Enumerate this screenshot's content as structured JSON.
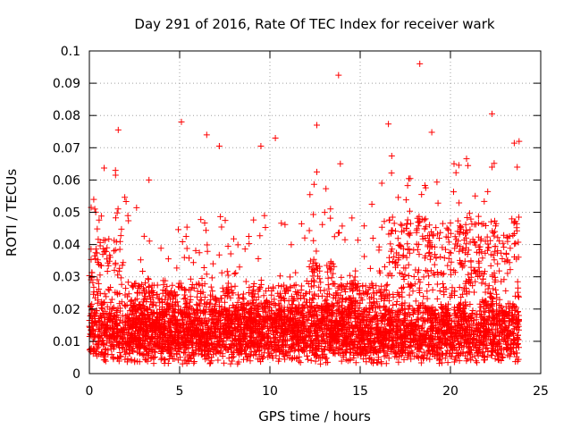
{
  "chart_data": {
    "type": "scatter",
    "title": "Day 291 of 2016, Rate Of TEC Index for receiver wark",
    "xlabel": "GPS time / hours",
    "ylabel": "ROTI / TECUs",
    "xlim": [
      0,
      25
    ],
    "ylim": [
      0,
      0.1
    ],
    "grid": true,
    "marker": "+",
    "color": "#ff0000",
    "x_ticks": [
      "0",
      "5",
      "10",
      "15",
      "20",
      "25"
    ],
    "x_tick_values": [
      0,
      5,
      10,
      15,
      20,
      25
    ],
    "y_ticks": [
      "0",
      "0.01",
      "0.02",
      "0.03",
      "0.04",
      "0.05",
      "0.06",
      "0.07",
      "0.08",
      "0.09",
      "0.1"
    ],
    "y_tick_values": [
      0,
      0.01,
      0.02,
      0.03,
      0.04,
      0.05,
      0.06,
      0.07,
      0.08,
      0.09,
      0.1
    ],
    "x_data_range": [
      0,
      23.8
    ],
    "typical_range": [
      0.005,
      0.02
    ],
    "notable_points": [
      {
        "x": 18.3,
        "y": 0.096
      },
      {
        "x": 13.8,
        "y": 0.0925
      },
      {
        "x": 22.3,
        "y": 0.0805
      },
      {
        "x": 5.1,
        "y": 0.078
      },
      {
        "x": 12.6,
        "y": 0.077
      },
      {
        "x": 1.6,
        "y": 0.0755
      },
      {
        "x": 6.5,
        "y": 0.074
      },
      {
        "x": 10.3,
        "y": 0.073
      },
      {
        "x": 23.8,
        "y": 0.072
      },
      {
        "x": 7.2,
        "y": 0.0705
      },
      {
        "x": 9.5,
        "y": 0.0705
      },
      {
        "x": 13.9,
        "y": 0.065
      },
      {
        "x": 20.2,
        "y": 0.065
      },
      {
        "x": 22.3,
        "y": 0.064
      },
      {
        "x": 23.7,
        "y": 0.064
      },
      {
        "x": 12.6,
        "y": 0.0625
      },
      {
        "x": 1.45,
        "y": 0.0615
      },
      {
        "x": 3.3,
        "y": 0.06
      },
      {
        "x": 16.2,
        "y": 0.059
      },
      {
        "x": 0.1,
        "y": 0.0515
      },
      {
        "x": 0.3,
        "y": 0.051
      },
      {
        "x": 12.8,
        "y": 0.003
      },
      {
        "x": 13.2,
        "y": 0.0035
      },
      {
        "x": 5.5,
        "y": 0.004
      },
      {
        "x": 20.5,
        "y": 0.004
      }
    ],
    "seed": 291
  }
}
